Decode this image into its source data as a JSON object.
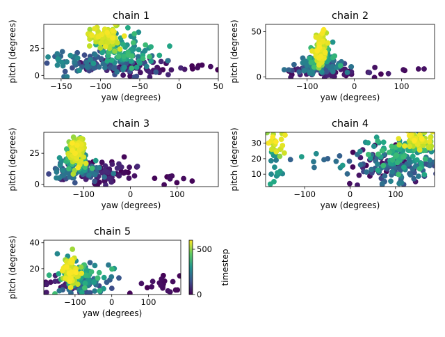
{
  "chart_data": [
    {
      "type": "scatter",
      "title": "chain 1",
      "xlabel": "yaw (degrees)",
      "ylabel": "pitch (degrees)",
      "xlim": [
        -172,
        50
      ],
      "ylim": [
        -3,
        47
      ],
      "xticks": [
        -150,
        -100,
        -50,
        0,
        50
      ],
      "yticks": [
        0,
        25
      ],
      "seed": 11,
      "clusters": [
        {
          "cx": -60,
          "cy": 8,
          "sx": 28,
          "sy": 4,
          "n": 70,
          "t": [
            0,
            0.12
          ]
        },
        {
          "cx": 10,
          "cy": 8,
          "sx": 16,
          "sy": 2,
          "n": 8,
          "t": [
            0,
            0.05
          ]
        },
        {
          "cx": -95,
          "cy": 12,
          "sx": 32,
          "sy": 6,
          "n": 80,
          "t": [
            0.2,
            0.45
          ]
        },
        {
          "cx": -150,
          "cy": 15,
          "sx": 10,
          "sy": 4,
          "n": 14,
          "t": [
            0.3,
            0.5
          ]
        },
        {
          "cx": -72,
          "cy": 22,
          "sx": 18,
          "sy": 7,
          "n": 80,
          "t": [
            0.45,
            0.7
          ]
        },
        {
          "cx": -95,
          "cy": 35,
          "sx": 10,
          "sy": 5,
          "n": 90,
          "t": [
            0.82,
            1.0
          ]
        }
      ]
    },
    {
      "type": "scatter",
      "title": "chain 2",
      "xlabel": "yaw (degrees)",
      "ylabel": "pitch (degrees)",
      "xlim": [
        -188,
        170
      ],
      "ylim": [
        -2,
        58
      ],
      "xticks": [
        -100,
        0,
        100
      ],
      "yticks": [
        0,
        50
      ],
      "seed": 23,
      "clusters": [
        {
          "cx": -60,
          "cy": 6,
          "sx": 45,
          "sy": 3,
          "n": 60,
          "t": [
            0,
            0.12
          ]
        },
        {
          "cx": 120,
          "cy": 6,
          "sx": 30,
          "sy": 3,
          "n": 6,
          "t": [
            0,
            0.05
          ]
        },
        {
          "cx": -75,
          "cy": 12,
          "sx": 25,
          "sy": 5,
          "n": 80,
          "t": [
            0.2,
            0.45
          ]
        },
        {
          "cx": -70,
          "cy": 22,
          "sx": 12,
          "sy": 6,
          "n": 70,
          "t": [
            0.45,
            0.7
          ]
        },
        {
          "cx": -72,
          "cy": 32,
          "sx": 6,
          "sy": 8,
          "n": 90,
          "t": [
            0.82,
            1.0
          ]
        }
      ]
    },
    {
      "type": "scatter",
      "title": "chain 3",
      "xlabel": "yaw (degrees)",
      "ylabel": "pitch (degrees)",
      "xlim": [
        -185,
        188
      ],
      "ylim": [
        -2,
        42
      ],
      "xticks": [
        -100,
        0,
        100
      ],
      "yticks": [
        0,
        25
      ],
      "seed": 37,
      "clusters": [
        {
          "cx": -60,
          "cy": 10,
          "sx": 40,
          "sy": 6,
          "n": 70,
          "t": [
            0,
            0.12
          ]
        },
        {
          "cx": 90,
          "cy": 5,
          "sx": 50,
          "sy": 3,
          "n": 10,
          "t": [
            0,
            0.05
          ]
        },
        {
          "cx": -120,
          "cy": 10,
          "sx": 30,
          "sy": 4,
          "n": 60,
          "t": [
            0.2,
            0.45
          ]
        },
        {
          "cx": -115,
          "cy": 20,
          "sx": 15,
          "sy": 6,
          "n": 60,
          "t": [
            0.45,
            0.7
          ]
        },
        {
          "cx": -112,
          "cy": 28,
          "sx": 10,
          "sy": 6,
          "n": 90,
          "t": [
            0.82,
            1.0
          ]
        }
      ]
    },
    {
      "type": "scatter",
      "title": "chain 4",
      "xlabel": "yaw (degrees)",
      "ylabel": "pitch (degrees)",
      "xlim": [
        -186,
        186
      ],
      "ylim": [
        2,
        37
      ],
      "xticks": [
        -100,
        0,
        100
      ],
      "yticks": [
        10,
        20,
        30
      ],
      "seed": 53,
      "clusters": [
        {
          "cx": 60,
          "cy": 15,
          "sx": 40,
          "sy": 6,
          "n": 40,
          "t": [
            0,
            0.12
          ]
        },
        {
          "cx": 120,
          "cy": 14,
          "sx": 45,
          "sy": 5,
          "n": 100,
          "t": [
            0.2,
            0.45
          ]
        },
        {
          "cx": -50,
          "cy": 18,
          "sx": 50,
          "sy": 4,
          "n": 15,
          "t": [
            0.3,
            0.55
          ]
        },
        {
          "cx": -165,
          "cy": 14,
          "sx": 10,
          "sy": 6,
          "n": 15,
          "t": [
            0.4,
            0.6
          ]
        },
        {
          "cx": 110,
          "cy": 24,
          "sx": 35,
          "sy": 6,
          "n": 80,
          "t": [
            0.45,
            0.7
          ]
        },
        {
          "cx": 150,
          "cy": 30,
          "sx": 20,
          "sy": 3,
          "n": 60,
          "t": [
            0.82,
            1.0
          ]
        },
        {
          "cx": -165,
          "cy": 29,
          "sx": 10,
          "sy": 3,
          "n": 25,
          "t": [
            0.82,
            1.0
          ]
        }
      ]
    },
    {
      "type": "scatter",
      "title": "chain 5",
      "xlabel": "yaw (degrees)",
      "ylabel": "pitch (degrees)",
      "xlim": [
        -185,
        188
      ],
      "ylim": [
        0,
        42
      ],
      "xticks": [
        -100,
        0,
        100
      ],
      "yticks": [
        20,
        40
      ],
      "seed": 71,
      "clusters": [
        {
          "cx": -130,
          "cy": 8,
          "sx": 30,
          "sy": 4,
          "n": 30,
          "t": [
            0,
            0.12
          ]
        },
        {
          "cx": 140,
          "cy": 8,
          "sx": 30,
          "sy": 4,
          "n": 20,
          "t": [
            0,
            0.05
          ]
        },
        {
          "cx": -70,
          "cy": 10,
          "sx": 40,
          "sy": 5,
          "n": 70,
          "t": [
            0.2,
            0.45
          ]
        },
        {
          "cx": -80,
          "cy": 15,
          "sx": 30,
          "sy": 6,
          "n": 70,
          "t": [
            0.45,
            0.7
          ]
        },
        {
          "cx": -110,
          "cy": 18,
          "sx": 10,
          "sy": 5,
          "n": 90,
          "t": [
            0.82,
            1.0
          ]
        }
      ]
    }
  ],
  "colorbar": {
    "label": "timestep",
    "range": [
      0,
      600
    ],
    "ticks": [
      0,
      500
    ],
    "colormap": "viridis"
  }
}
